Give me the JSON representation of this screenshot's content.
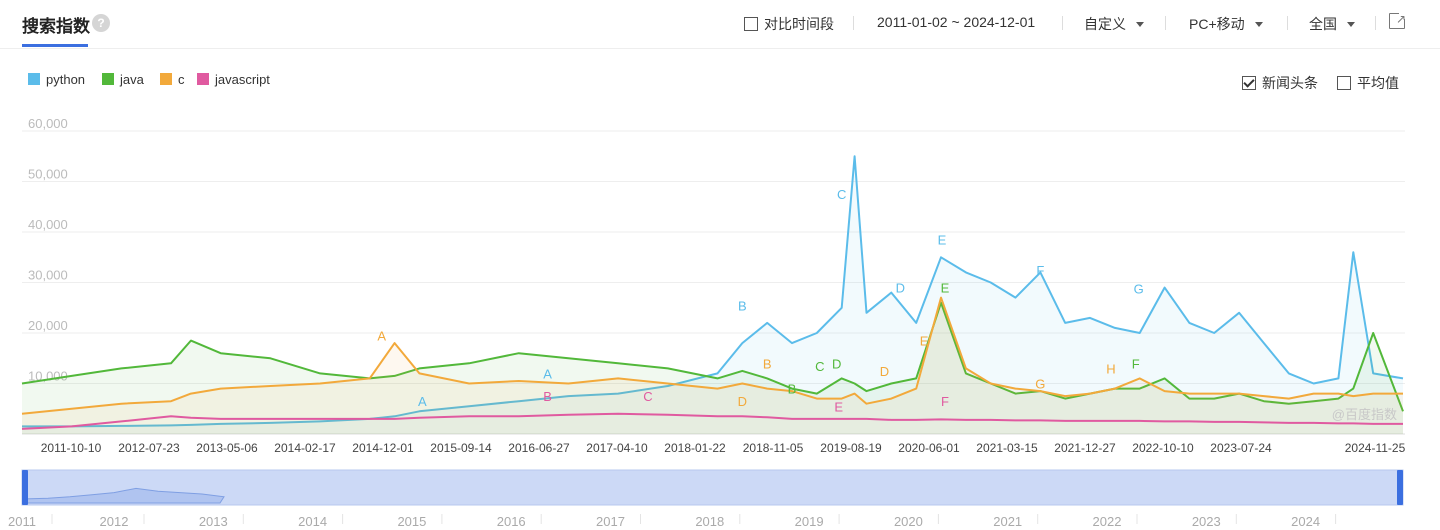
{
  "header": {
    "title": "搜索指数",
    "help": "?",
    "compare_label": "对比时间段",
    "date_range": "2011-01-02 ~ 2024-12-01",
    "custom": "自定义",
    "device": "PC+移动",
    "region": "全国"
  },
  "options": {
    "news_label": "新闻头条",
    "news_checked": true,
    "avg_label": "平均值",
    "avg_checked": false
  },
  "watermark": "@百度指数",
  "colors": {
    "python": "#5bbcea",
    "java": "#52b83a",
    "c": "#f2a93b",
    "javascript": "#e05aa0",
    "accent": "#3b6fe0"
  },
  "chart_data": {
    "type": "line",
    "ylim": [
      0,
      60000
    ],
    "yticks": [
      "60,000",
      "50,000",
      "40,000",
      "30,000",
      "20,000",
      "10,000"
    ],
    "xticks": [
      "2011-10-10",
      "2012-07-23",
      "2013-05-06",
      "2014-02-17",
      "2014-12-01",
      "2015-09-14",
      "2016-06-27",
      "2017-04-10",
      "2018-01-22",
      "2018-11-05",
      "2019-08-19",
      "2020-06-01",
      "2021-03-15",
      "2021-12-27",
      "2022-10-10",
      "2023-07-24",
      "2024-11-25"
    ],
    "x": [
      2011.0,
      2011.5,
      2012.0,
      2012.5,
      2012.7,
      2013.0,
      2013.5,
      2014.0,
      2014.5,
      2014.75,
      2015.0,
      2015.5,
      2016.0,
      2016.5,
      2017.0,
      2017.5,
      2018.0,
      2018.25,
      2018.5,
      2018.75,
      2019.0,
      2019.25,
      2019.38,
      2019.5,
      2019.75,
      2020.0,
      2020.25,
      2020.5,
      2020.75,
      2021.0,
      2021.25,
      2021.5,
      2021.75,
      2022.0,
      2022.25,
      2022.5,
      2022.75,
      2023.0,
      2023.25,
      2023.5,
      2023.75,
      2024.0,
      2024.25,
      2024.4,
      2024.6,
      2024.9
    ],
    "series": [
      {
        "name": "python",
        "values": [
          1500,
          1500,
          1600,
          1700,
          1800,
          2000,
          2200,
          2500,
          3000,
          3500,
          4500,
          5500,
          6500,
          7500,
          8000,
          9500,
          12000,
          18000,
          22000,
          18000,
          20000,
          25000,
          55000,
          24000,
          28000,
          22000,
          35000,
          32000,
          30000,
          27000,
          32000,
          22000,
          23000,
          21000,
          20000,
          29000,
          22000,
          20000,
          24000,
          18000,
          12000,
          10000,
          11000,
          36000,
          12000,
          11000
        ]
      },
      {
        "name": "java",
        "values": [
          10000,
          11500,
          13000,
          14000,
          18500,
          16000,
          15000,
          12000,
          11000,
          11500,
          13000,
          14000,
          16000,
          15000,
          14000,
          13000,
          11000,
          12500,
          11000,
          9000,
          8000,
          11000,
          10000,
          8500,
          10000,
          11000,
          26000,
          12000,
          10000,
          8000,
          8500,
          7000,
          8000,
          9000,
          9000,
          11000,
          7000,
          7000,
          8000,
          6500,
          6000,
          6500,
          7000,
          9000,
          20000,
          4500
        ]
      },
      {
        "name": "c",
        "values": [
          4000,
          5000,
          6000,
          6500,
          8000,
          9000,
          9500,
          10000,
          11000,
          18000,
          12000,
          10000,
          10500,
          10000,
          11000,
          10000,
          9000,
          10000,
          9000,
          8500,
          7000,
          7000,
          8000,
          6000,
          7000,
          9000,
          27000,
          13000,
          10000,
          9000,
          8500,
          7500,
          8000,
          9000,
          11000,
          8500,
          8000,
          8000,
          8000,
          7500,
          7000,
          8000,
          8000,
          7500,
          8000,
          8000
        ]
      },
      {
        "name": "javascript",
        "values": [
          1000,
          1500,
          2500,
          3500,
          3200,
          3000,
          3000,
          3000,
          3000,
          3000,
          3200,
          3500,
          3500,
          3800,
          4000,
          3800,
          3500,
          3500,
          3300,
          3000,
          3000,
          3000,
          3000,
          3000,
          2800,
          2800,
          2900,
          2800,
          2800,
          2700,
          2700,
          2600,
          2600,
          2600,
          2600,
          2500,
          2500,
          2400,
          2400,
          2300,
          2200,
          2200,
          2100,
          2100,
          2000,
          2000
        ]
      }
    ],
    "annotations": [
      {
        "label": "A",
        "series": "c",
        "x": 2014.62,
        "y": 18500
      },
      {
        "label": "B",
        "series": "python",
        "x": 2018.25,
        "y": 24500
      },
      {
        "label": "C",
        "series": "python",
        "x": 2019.25,
        "y": 46500
      },
      {
        "label": "D",
        "series": "python",
        "x": 2019.84,
        "y": 28000
      },
      {
        "label": "E",
        "series": "python",
        "x": 2020.26,
        "y": 37500
      },
      {
        "label": "F",
        "series": "python",
        "x": 2021.25,
        "y": 31500
      },
      {
        "label": "G",
        "series": "python",
        "x": 2022.24,
        "y": 27800
      },
      {
        "label": "A",
        "series": "python",
        "x": 2015.03,
        "y": 5500
      },
      {
        "label": "A",
        "series": "python",
        "x": 2016.29,
        "y": 11000
      },
      {
        "label": "B",
        "series": "javascript",
        "x": 2016.29,
        "y": 6500
      },
      {
        "label": "C",
        "series": "javascript",
        "x": 2017.3,
        "y": 6500
      },
      {
        "label": "D",
        "series": "c",
        "x": 2018.25,
        "y": 5500
      },
      {
        "label": "B",
        "series": "c",
        "x": 2018.5,
        "y": 13000
      },
      {
        "label": "B",
        "series": "java",
        "x": 2018.75,
        "y": 8000
      },
      {
        "label": "C",
        "series": "java",
        "x": 2019.03,
        "y": 12500
      },
      {
        "label": "D",
        "series": "java",
        "x": 2019.2,
        "y": 13000
      },
      {
        "label": "E",
        "series": "javascript",
        "x": 2019.22,
        "y": 4500
      },
      {
        "label": "D",
        "series": "c",
        "x": 2019.68,
        "y": 11500
      },
      {
        "label": "E",
        "series": "c",
        "x": 2020.08,
        "y": 17500
      },
      {
        "label": "E",
        "series": "java",
        "x": 2020.29,
        "y": 28000
      },
      {
        "label": "F",
        "series": "javascript",
        "x": 2020.29,
        "y": 5500
      },
      {
        "label": "G",
        "series": "c",
        "x": 2021.25,
        "y": 9000
      },
      {
        "label": "H",
        "series": "c",
        "x": 2021.96,
        "y": 12000
      },
      {
        "label": "F",
        "series": "java",
        "x": 2022.21,
        "y": 13000
      }
    ],
    "navigator_years": [
      "2011",
      "2012",
      "2013",
      "2014",
      "2015",
      "2016",
      "2017",
      "2018",
      "2019",
      "2020",
      "2021",
      "2022",
      "2023",
      "2024"
    ],
    "navigator_mini": [
      0.15,
      0.2,
      0.3,
      0.45,
      0.6,
      0.9,
      0.7,
      0.6,
      0.5,
      0.3
    ]
  }
}
